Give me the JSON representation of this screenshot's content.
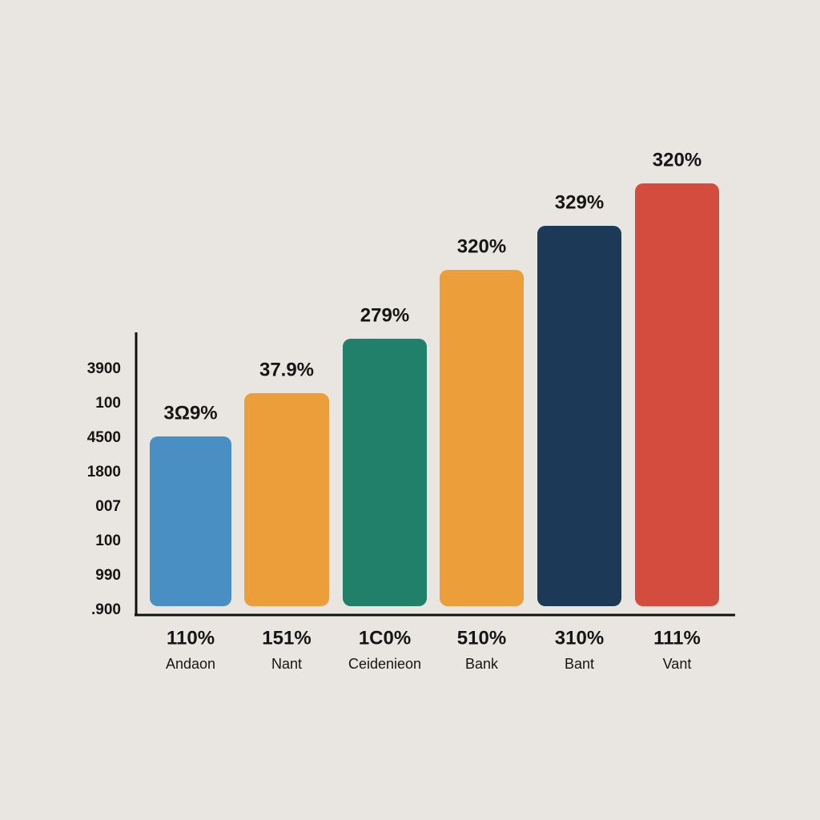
{
  "y_axis_labels": [
    "3900",
    "100",
    "4500",
    "1800",
    "007",
    "100",
    "990",
    ".900"
  ],
  "bars": [
    {
      "top_label": "3Ω9%",
      "bottom_label": "110%",
      "name": "Andaon",
      "color": "#4a8fc3"
    },
    {
      "top_label": "37.9%",
      "bottom_label": "151%",
      "name": "Nant",
      "color": "#eb9e3a"
    },
    {
      "top_label": "279%",
      "bottom_label": "1C0%",
      "name": "Ceidenieon",
      "color": "#21806a"
    },
    {
      "top_label": "320%",
      "bottom_label": "510%",
      "name": "Bank",
      "color": "#eb9e3a"
    },
    {
      "top_label": "329%",
      "bottom_label": "310%",
      "name": "Bant",
      "color": "#1c3a57"
    },
    {
      "top_label": "320%",
      "bottom_label": "111%",
      "name": "Vant",
      "color": "#d44c3e"
    }
  ]
}
